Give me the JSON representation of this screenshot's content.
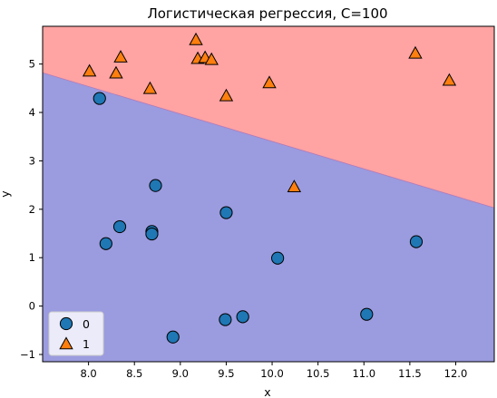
{
  "chart_data": {
    "type": "scatter",
    "title": "Логистическая регрессия, C=100",
    "xlabel": "x",
    "ylabel": "y",
    "xlim": [
      7.5,
      12.42
    ],
    "ylim": [
      -1.15,
      5.78
    ],
    "xticks": [
      8.0,
      8.5,
      9.0,
      9.5,
      10.0,
      10.5,
      11.0,
      11.5,
      12.0
    ],
    "xtick_labels": [
      "8.0",
      "8.5",
      "9.0",
      "9.5",
      "10.0",
      "10.5",
      "11.0",
      "11.5",
      "12.0"
    ],
    "yticks": [
      -1,
      0,
      1,
      2,
      3,
      4,
      5
    ],
    "ytick_labels": [
      "−1",
      "0",
      "1",
      "2",
      "3",
      "4",
      "5"
    ],
    "decision_boundary": {
      "x": [
        7.5,
        12.42
      ],
      "y": [
        4.82,
        2.03
      ]
    },
    "regions": {
      "class_1_color": "#ffa3a3",
      "class_0_color": "#9b9bdf",
      "class_1_side": "above"
    },
    "legend": {
      "placement": "lower-left"
    },
    "series": [
      {
        "name": "0",
        "marker": "circle",
        "color": "#1f77b4",
        "points": [
          [
            8.12,
            4.29
          ],
          [
            8.73,
            2.49
          ],
          [
            9.5,
            1.93
          ],
          [
            8.34,
            1.64
          ],
          [
            8.69,
            1.54
          ],
          [
            8.69,
            1.49
          ],
          [
            8.19,
            1.29
          ],
          [
            10.06,
            0.99
          ],
          [
            11.57,
            1.33
          ],
          [
            9.49,
            -0.28
          ],
          [
            9.68,
            -0.22
          ],
          [
            11.03,
            -0.17
          ],
          [
            8.92,
            -0.64
          ]
        ]
      },
      {
        "name": "1",
        "marker": "triangle",
        "color": "#ff7f0e",
        "points": [
          [
            8.01,
            4.84
          ],
          [
            8.3,
            4.8
          ],
          [
            8.35,
            5.13
          ],
          [
            8.67,
            4.48
          ],
          [
            9.17,
            5.49
          ],
          [
            9.19,
            5.1
          ],
          [
            9.27,
            5.12
          ],
          [
            9.34,
            5.08
          ],
          [
            9.5,
            4.33
          ],
          [
            9.97,
            4.6
          ],
          [
            11.56,
            5.21
          ],
          [
            11.93,
            4.65
          ],
          [
            10.24,
            2.45
          ]
        ]
      }
    ]
  }
}
